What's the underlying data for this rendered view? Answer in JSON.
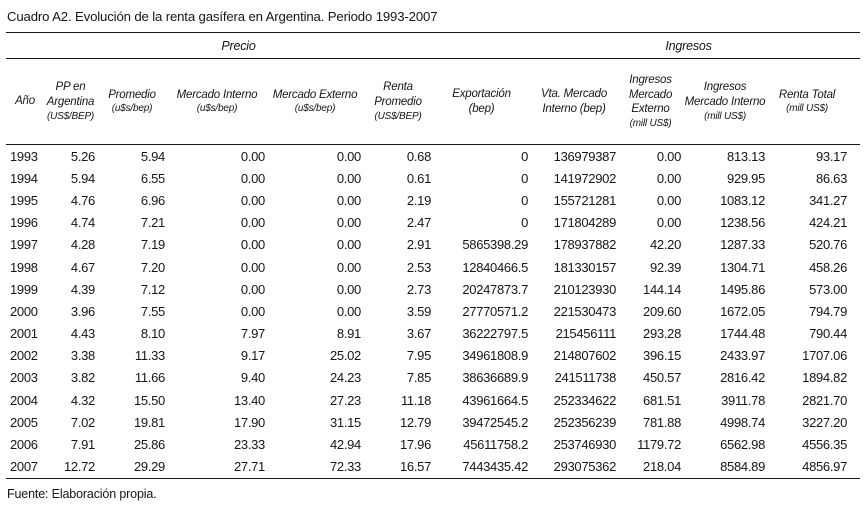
{
  "title": "Cuadro A2. Evolución de la renta gasífera en Argentina. Periodo 1993-2007",
  "source": "Fuente: Elaboración propia.",
  "table": {
    "group_headers": {
      "precio": "Precio",
      "ingresos": "Ingresos"
    },
    "columns": [
      {
        "label": "Año",
        "unit": ""
      },
      {
        "label": "PP en Argentina",
        "unit": "(US$/BEP)"
      },
      {
        "label": "Promedio",
        "unit": "(u$s/bep)"
      },
      {
        "label": "Mercado Interno",
        "unit": "(u$s/bep)"
      },
      {
        "label": "Mercado Externo",
        "unit": "(u$s/bep)"
      },
      {
        "label": "Renta Promedio",
        "unit": "(US$/BEP)"
      },
      {
        "label": "Exportación",
        "unit": "(bep)"
      },
      {
        "label": "Vta. Mercado Interno (bep)",
        "unit": ""
      },
      {
        "label": "Ingresos Mercado Externo",
        "unit": "(mill US$)"
      },
      {
        "label": "Ingresos Mercado Interno",
        "unit": "(mill US$)"
      },
      {
        "label": "Renta Total",
        "unit": "(mill US$)"
      }
    ],
    "rows": [
      [
        "1993",
        "5.26",
        "5.94",
        "0.00",
        "0.00",
        "0.68",
        "0",
        "136979387",
        "0.00",
        "813.13",
        "93.17"
      ],
      [
        "1994",
        "5.94",
        "6.55",
        "0.00",
        "0.00",
        "0.61",
        "0",
        "141972902",
        "0.00",
        "929.95",
        "86.63"
      ],
      [
        "1995",
        "4.76",
        "6.96",
        "0.00",
        "0.00",
        "2.19",
        "0",
        "155721281",
        "0.00",
        "1083.12",
        "341.27"
      ],
      [
        "1996",
        "4.74",
        "7.21",
        "0.00",
        "0.00",
        "2.47",
        "0",
        "171804289",
        "0.00",
        "1238.56",
        "424.21"
      ],
      [
        "1997",
        "4.28",
        "7.19",
        "0.00",
        "0.00",
        "2.91",
        "5865398.29",
        "178937882",
        "42.20",
        "1287.33",
        "520.76"
      ],
      [
        "1998",
        "4.67",
        "7.20",
        "0.00",
        "0.00",
        "2.53",
        "12840466.5",
        "181330157",
        "92.39",
        "1304.71",
        "458.26"
      ],
      [
        "1999",
        "4.39",
        "7.12",
        "0.00",
        "0.00",
        "2.73",
        "20247873.7",
        "210123930",
        "144.14",
        "1495.86",
        "573.00"
      ],
      [
        "2000",
        "3.96",
        "7.55",
        "0.00",
        "0.00",
        "3.59",
        "27770571.2",
        "221530473",
        "209.60",
        "1672.05",
        "794.79"
      ],
      [
        "2001",
        "4.43",
        "8.10",
        "7.97",
        "8.91",
        "3.67",
        "36222797.5",
        "215456111",
        "293.28",
        "1744.48",
        "790.44"
      ],
      [
        "2002",
        "3.38",
        "11.33",
        "9.17",
        "25.02",
        "7.95",
        "34961808.9",
        "214807602",
        "396.15",
        "2433.97",
        "1707.06"
      ],
      [
        "2003",
        "3.82",
        "11.66",
        "9.40",
        "24.23",
        "7.85",
        "38636689.9",
        "241511738",
        "450.57",
        "2816.42",
        "1894.82"
      ],
      [
        "2004",
        "4.32",
        "15.50",
        "13.40",
        "27.23",
        "11.18",
        "43961664.5",
        "252334622",
        "681.51",
        "3911.78",
        "2821.70"
      ],
      [
        "2005",
        "7.02",
        "19.81",
        "17.90",
        "31.15",
        "12.79",
        "39472545.2",
        "252356239",
        "781.88",
        "4998.74",
        "3227.20"
      ],
      [
        "2006",
        "7.91",
        "25.86",
        "23.33",
        "42.94",
        "17.96",
        "45611758.2",
        "253746930",
        "1179.72",
        "6562.98",
        "4556.35"
      ],
      [
        "2007",
        "12.72",
        "29.29",
        "27.71",
        "72.33",
        "16.57",
        "7443435.42",
        "293075362",
        "218.04",
        "8584.89",
        "4856.97"
      ]
    ]
  }
}
